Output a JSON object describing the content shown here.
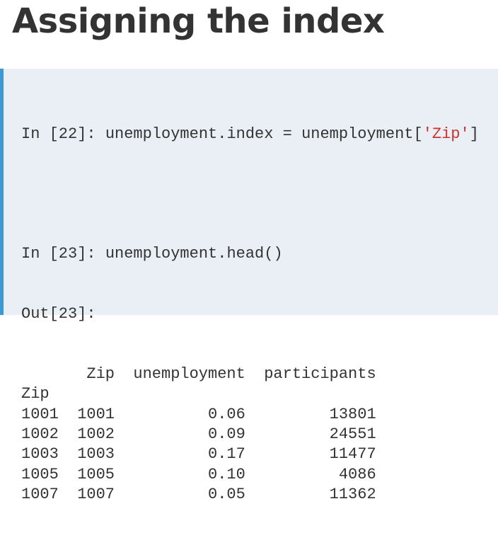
{
  "title": "Assigning the index",
  "code": {
    "in22": [
      "In [22]: unemployment.index = unemployment[",
      "'Zip'",
      "]"
    ],
    "in23": "In [23]: unemployment.head()",
    "out": "Out[23]:",
    "table": {
      "columns": [
        "Zip",
        "unemployment",
        "participants"
      ],
      "index_name": "Zip",
      "rows": [
        [
          "1001",
          "1001",
          "0.06",
          "13801"
        ],
        [
          "1002",
          "1002",
          "0.09",
          "24551"
        ],
        [
          "1003",
          "1003",
          "0.17",
          "11477"
        ],
        [
          "1005",
          "1005",
          "0.10",
          "4086"
        ],
        [
          "1007",
          "1007",
          "0.05",
          "11362"
        ]
      ]
    }
  }
}
